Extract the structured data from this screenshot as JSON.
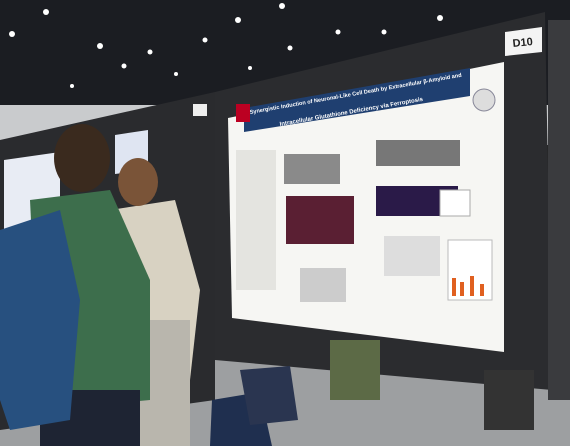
{
  "booth_signs": [
    "D10"
  ],
  "poster": {
    "title_line_1": "Synergistic Induction of Neuronal-Like Cell Death by Extracellular β-Amyloid and",
    "title_line_2": "Intracellular Glutathione Deficiency via Ferroptosis"
  }
}
